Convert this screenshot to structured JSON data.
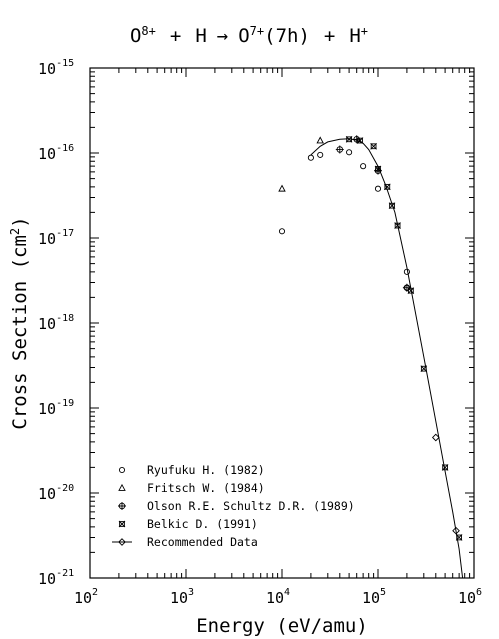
{
  "chart_data": {
    "type": "scatter",
    "title": {
      "lhs1": "O",
      "lhs1_sup": "8+",
      "plus1": "+",
      "lhs2": "H",
      "arrow": "→",
      "rhs1": "O",
      "rhs1_sup": "7+",
      "rhs1_state": "(7h)",
      "plus2": "+",
      "rhs2": "H",
      "rhs2_sup": "+"
    },
    "xlabel": "Energy (eV/amu)",
    "ylabel_main": "Cross Section (cm",
    "ylabel_sup": "2",
    "ylabel_end": ")",
    "x_scale": "log",
    "y_scale": "log",
    "xlim": [
      100,
      1000000
    ],
    "ylim": [
      1e-21,
      1e-15
    ],
    "x_ticks": [
      {
        "base": "10",
        "exp": "2",
        "value": 100
      },
      {
        "base": "10",
        "exp": "3",
        "value": 1000
      },
      {
        "base": "10",
        "exp": "4",
        "value": 10000
      },
      {
        "base": "10",
        "exp": "5",
        "value": 100000
      },
      {
        "base": "10",
        "exp": "6",
        "value": 1000000
      }
    ],
    "y_ticks": [
      {
        "base": "10",
        "exp": "-15",
        "value": 1e-15
      },
      {
        "base": "10",
        "exp": "-16",
        "value": 1e-16
      },
      {
        "base": "10",
        "exp": "-17",
        "value": 1e-17
      },
      {
        "base": "10",
        "exp": "-18",
        "value": 1e-18
      },
      {
        "base": "10",
        "exp": "-19",
        "value": 1e-19
      },
      {
        "base": "10",
        "exp": "-20",
        "value": 1e-20
      },
      {
        "base": "10",
        "exp": "-21",
        "value": 1e-21
      }
    ],
    "legend_position": "bottom-left",
    "grid": false,
    "series": [
      {
        "name": "Ryufuku H. (1982)",
        "marker": "circle",
        "points": [
          [
            10000,
            1.2e-17
          ],
          [
            20000,
            8.8e-17
          ],
          [
            25000,
            9.5e-17
          ],
          [
            50000,
            1.02e-16
          ],
          [
            70000,
            7e-17
          ],
          [
            100000,
            3.8e-17
          ],
          [
            200000,
            4e-18
          ]
        ]
      },
      {
        "name": "Fritsch W. (1984)",
        "marker": "triangle",
        "points": [
          [
            10000,
            3.8e-17
          ],
          [
            25000,
            1.4e-16
          ]
        ]
      },
      {
        "name": "Olson R.E. Schultz D.R. (1989)",
        "marker": "circle-plus",
        "points": [
          [
            40000,
            1.1e-16
          ],
          [
            60000,
            1.45e-16
          ],
          [
            100000,
            6.2e-17
          ],
          [
            200000,
            2.6e-18
          ]
        ]
      },
      {
        "name": "Belkic D. (1991)",
        "marker": "x-square",
        "points": [
          [
            50000,
            1.45e-16
          ],
          [
            65000,
            1.4e-16
          ],
          [
            90000,
            1.2e-16
          ],
          [
            100000,
            6.5e-17
          ],
          [
            125000,
            4e-17
          ],
          [
            140000,
            2.4e-17
          ],
          [
            160000,
            1.4e-17
          ],
          [
            220000,
            2.4e-18
          ],
          [
            300000,
            2.9e-19
          ],
          [
            500000,
            2e-20
          ],
          [
            700000,
            3e-21
          ]
        ]
      },
      {
        "name": "Recommended Data",
        "marker": "diamond-line",
        "line": [
          [
            20000,
            9.5e-17
          ],
          [
            25000,
            1.2e-16
          ],
          [
            30000,
            1.35e-16
          ],
          [
            40000,
            1.45e-16
          ],
          [
            50000,
            1.47e-16
          ],
          [
            60000,
            1.42e-16
          ],
          [
            70000,
            1.3e-16
          ],
          [
            80000,
            1.1e-16
          ],
          [
            100000,
            7e-17
          ],
          [
            120000,
            4.2e-17
          ],
          [
            150000,
            2e-17
          ],
          [
            200000,
            4.5e-18
          ],
          [
            300000,
            4e-19
          ],
          [
            400000,
            7e-20
          ],
          [
            500000,
            1.8e-20
          ],
          [
            600000,
            6e-21
          ],
          [
            700000,
            2.2e-21
          ],
          [
            760000,
            1e-21
          ]
        ],
        "points": [
          [
            200000,
            2.6e-18
          ],
          [
            400000,
            4.5e-20
          ],
          [
            650000,
            3.6e-21
          ]
        ]
      }
    ]
  }
}
